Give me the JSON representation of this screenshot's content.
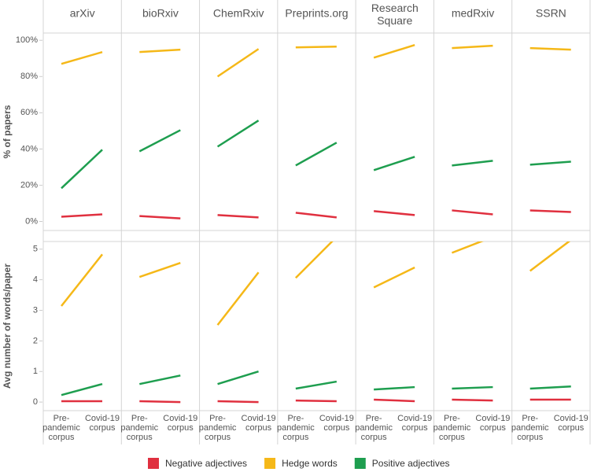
{
  "chart_data": {
    "type": "line",
    "panels": [
      "arXiv",
      "bioRxiv",
      "ChemRxiv",
      "Preprints.org",
      "Research Square",
      "medRxiv",
      "SSRN"
    ],
    "categories": [
      [
        "Pre-",
        "pandemic",
        "corpus"
      ],
      [
        "Covid-19",
        "corpus"
      ]
    ],
    "rows": [
      {
        "ylabel": "% of papers",
        "ylim": [
          -5,
          104
        ],
        "yticks": [
          {
            "value": 0,
            "label": "0%"
          },
          {
            "value": 20,
            "label": "20%"
          },
          {
            "value": 40,
            "label": "40%"
          },
          {
            "value": 60,
            "label": "60%"
          },
          {
            "value": 80,
            "label": "80%"
          },
          {
            "value": 100,
            "label": "100%"
          }
        ]
      },
      {
        "ylabel": "Avg number of words/paper",
        "ylim": [
          -0.28,
          5.25
        ],
        "yticks": [
          0,
          1,
          2,
          3,
          4,
          5
        ]
      }
    ],
    "series": [
      {
        "name": "Negative adjectives",
        "color": "#e0303f",
        "values": [
          [
            [
              2.6,
              3.9
            ],
            [
              3,
              1.7
            ],
            [
              3.5,
              2.2
            ],
            [
              4.8,
              2.2
            ],
            [
              5.7,
              3.5
            ],
            [
              6.1,
              3.9
            ],
            [
              6.1,
              5.2
            ]
          ],
          [
            [
              0.03,
              0.03
            ],
            [
              0.03,
              0
            ],
            [
              0.03,
              0
            ],
            [
              0.05,
              0.03
            ],
            [
              0.08,
              0.03
            ],
            [
              0.08,
              0.05
            ],
            [
              0.08,
              0.08
            ]
          ]
        ]
      },
      {
        "name": "Hedge words",
        "color": "#f5b818",
        "values": [
          [
            [
              87,
              93.5
            ],
            [
              93.5,
              94.8
            ],
            [
              80,
              95.2
            ],
            [
              96.1,
              96.5
            ],
            [
              90.4,
              97.4
            ],
            [
              95.7,
              97
            ],
            [
              95.7,
              94.8
            ]
          ],
          [
            [
              3.14,
              4.83
            ],
            [
              4.09,
              4.55
            ],
            [
              2.52,
              4.24
            ],
            [
              4.06,
              5.4
            ],
            [
              3.75,
              4.4
            ],
            [
              4.88,
              5.4
            ],
            [
              4.29,
              5.3
            ]
          ]
        ]
      },
      {
        "name": "Positive adjectives",
        "color": "#1e9e4f",
        "values": [
          [
            [
              18.3,
              39.6
            ],
            [
              38.7,
              50.4
            ],
            [
              41.3,
              55.7
            ],
            [
              30.9,
              43.5
            ],
            [
              28.3,
              35.7
            ],
            [
              30.9,
              33.5
            ],
            [
              31.3,
              33
            ]
          ],
          [
            [
              0.23,
              0.59
            ],
            [
              0.59,
              0.87
            ],
            [
              0.59,
              1.0
            ],
            [
              0.44,
              0.67
            ],
            [
              0.41,
              0.49
            ],
            [
              0.44,
              0.49
            ],
            [
              0.44,
              0.51
            ]
          ]
        ]
      }
    ]
  }
}
